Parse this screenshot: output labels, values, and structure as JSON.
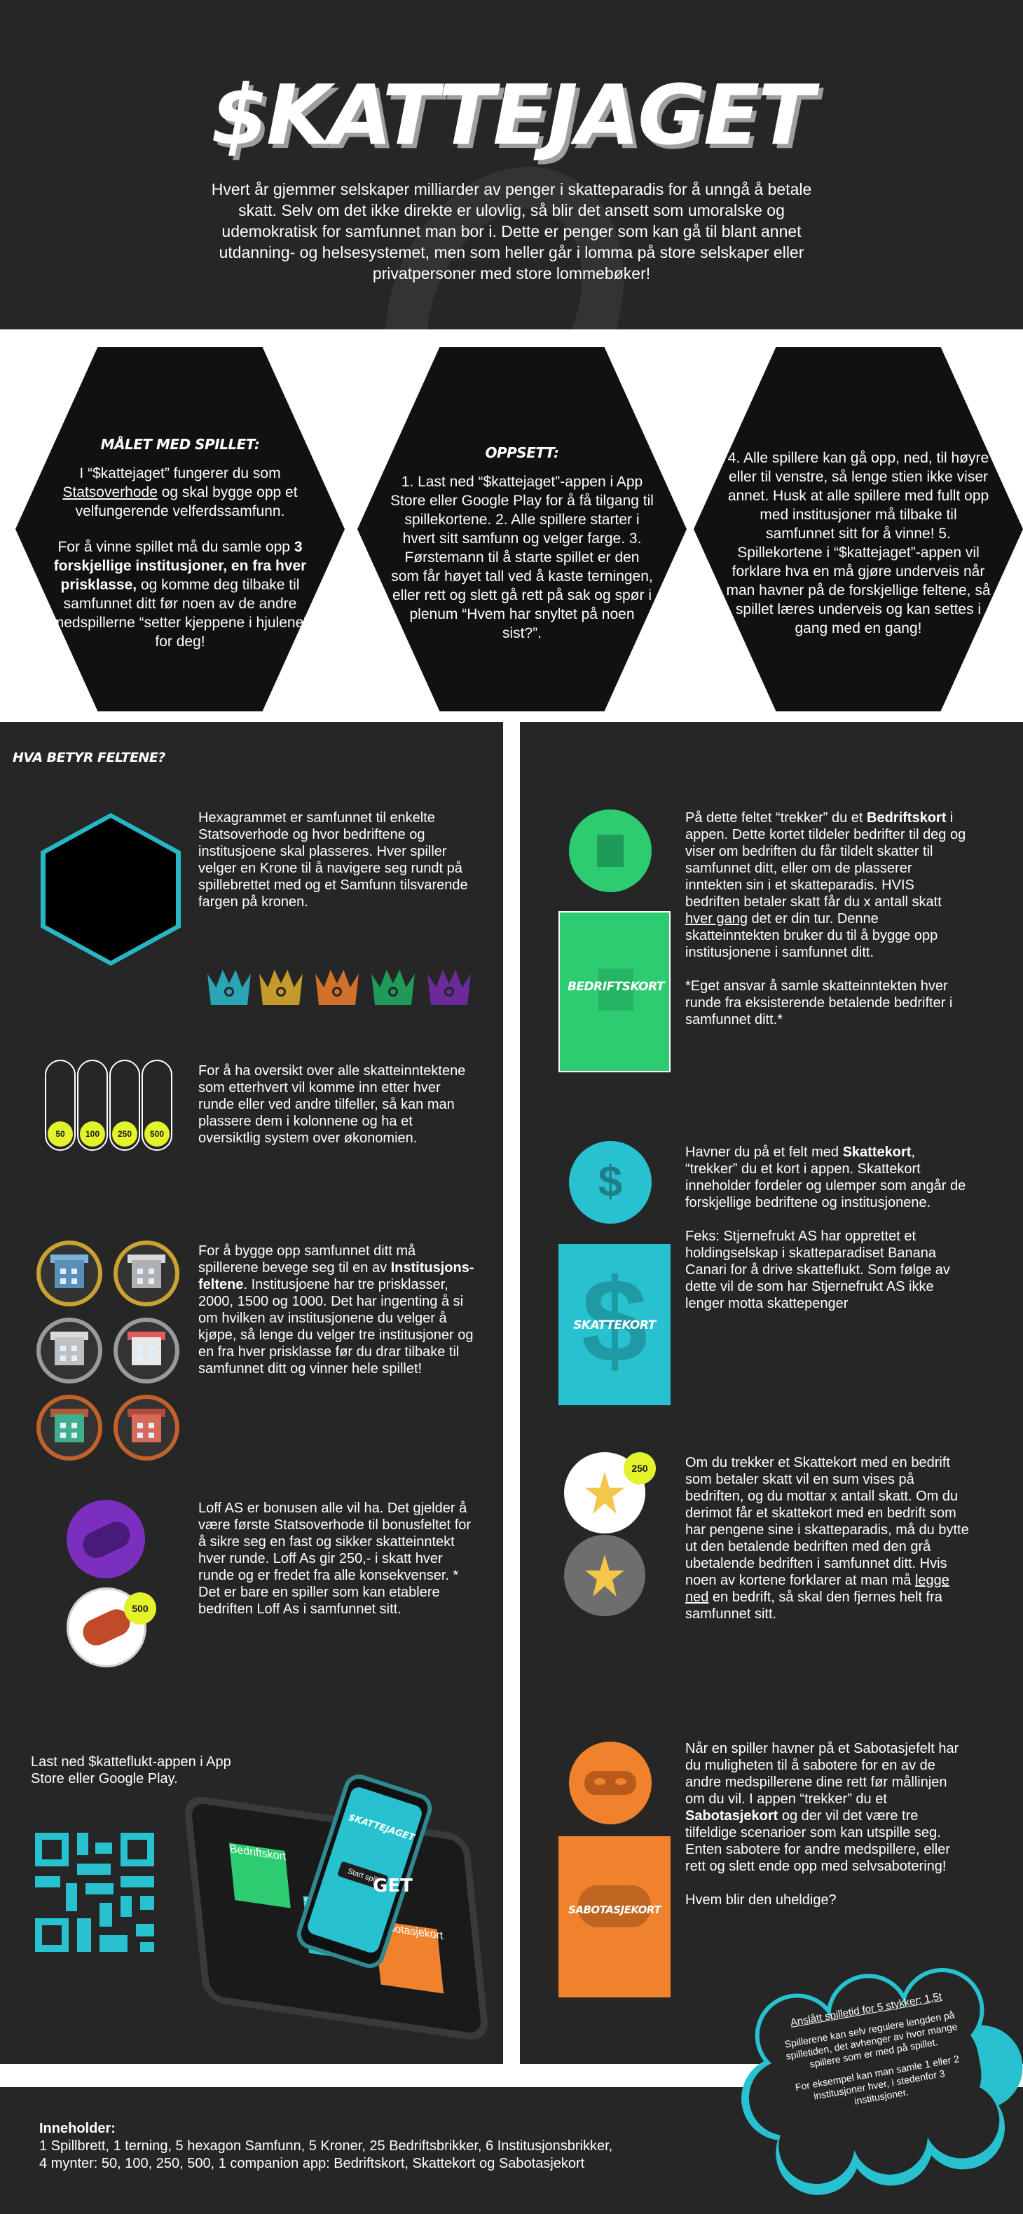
{
  "header": {
    "title": "$KATTEJAGET",
    "intro": "Hvert år gjemmer selskaper milliarder av penger i skatteparadis for å unngå å betale skatt. Selv om det ikke direkte er ulovlig, så blir det ansett som umoralske og udemokratisk for samfunnet man bor i. Dette er penger som kan gå til blant annet utdanning- og helsesystemet, men som heller går i lomma på store selskaper eller privatpersoner med store lommebøker!"
  },
  "goal": {
    "heading": "MÅLET MED SPILLET:",
    "p1_a": "I “$kattejaget” fungerer du som ",
    "p1_u": "Statsoverhode",
    "p1_b": " og skal bygge opp et velfungerende velferdssamfunn.",
    "p2_a": "For å vinne spillet må du samle opp ",
    "p2_bold": "3 forskjellige institusjoner, en fra hver prisklasse,",
    "p2_b": " og komme deg tilbake til samfunnet ditt før noen av de andre medspillerne “setter kjeppene i hjulene” for deg!"
  },
  "setup": {
    "heading": "OPPSETT:",
    "text": "1. Last ned “$kattejaget”-appen i App Store eller Google Play for å få tilgang til spillekortene. 2. Alle spillere starter i hvert sitt samfunn og velger farge. 3. Førstemann til å starte spillet er den som får høyet tall ved å kaste terningen, eller rett og slett gå rett på sak og spør i plenum “Hvem har snyltet på noen sist?”."
  },
  "rules": {
    "text": "4. Alle spillere kan gå opp, ned, til høyre eller til venstre, så lenge stien ikke viser annet. Husk at alle spillere med fullt opp med institusjoner må tilbake til samfunnet sitt for å vinne! 5. Spillekortene i “$kattejaget”-appen vil forklare hva en må gjøre underveis når man havner på de forskjellige feltene, så spillet læres underveis og kan settes i gang med en gang!"
  },
  "fields": {
    "heading": "HVA BETYR FELTENE?",
    "hexagram_text": "Hexagrammet er samfunnet til enkelte Statsoverhode og hvor bedriftene og institusjoene skal plasseres. Hver spiller velger en Krone til å navigere seg rundt på spillebrettet med og et Samfunn tilsvarende fargen på kronen.",
    "coins_text": "For å ha oversikt over alle skatteinntektene som etterhvert vil komme inn etter hver runde eller ved andre tilfeller, så kan man plassere dem i kolonnene og ha et oversiktlig system over økonomien.",
    "coin_values": [
      "50",
      "100",
      "250",
      "500"
    ],
    "inst_a": "For å bygge opp samfunnet ditt må spillerene bevege seg til en av ",
    "inst_bold": "Institusjons-feltene",
    "inst_b": ". Institusjoene har tre prisklasser, 2000, 1500 og 1000. Det har ingenting å si om hvilken av institusjonene du velger å kjøpe, så lenge du velger tre institusjoner og en fra hver prisklasse før du drar tilbake til samfunnet ditt og vinner hele spillet!",
    "loff_text": "Loff AS er bonusen alle vil ha. Det gjelder å være første Statsoverhode  til bonusfeltet for å sikre seg en fast og sikker skatteinntekt hver runde. Loff As gir 250,- i skatt hver runde og er fredet fra alle konsekvenser. * Det er bare en spiller som kan etablere bedriften Loff As i samfunnet sitt.",
    "loff_badge": "500",
    "download_text": "Last ned $katteflukt-appen i App Store eller Google Play."
  },
  "device": {
    "phone_title": "$KATTEJAGET",
    "phone_button": "Start spill",
    "get_label": "GET",
    "card1": "Bedriftskort",
    "card2": "Skattekort",
    "card3": "Sabotasjekort"
  },
  "right": {
    "bedrift_a": "På dette feltet “trekker” du et ",
    "bedrift_bold": "Bedriftskort",
    "bedrift_b": " i appen. Dette kortet tildeler bedrifter til deg og viser om bedriften du får tildelt skatter til samfunnet ditt, eller om de plasserer inntekten sin i et skatteparadis. HVIS bedriften betaler skatt får du x antall skatt ",
    "bedrift_u": "hver gang",
    "bedrift_c": " det er din tur. Denne skatteinntekten bruker du til å bygge opp institusjonene i samfunnet ditt.",
    "bedrift_note": "*Eget ansvar å samle skatteinntekten hver runde fra eksisterende betalende bedrifter i samfunnet ditt.*",
    "bedrift_card": "BEDRIFTSKORT",
    "skatt_a": "Havner du på et felt med ",
    "skatt_bold": "Skattekort",
    "skatt_b": ", “trekker” du et kort i appen. Skattekort inneholder fordeler og ulemper som angår de forskjellige bedriftene og institusjonene.",
    "skatt_ex": "Feks: Stjernefrukt AS har opprettet et holdingselskap i skatteparadiset Banana Canari for å drive skatteflukt. Som følge av dette vil de som har Stjernefrukt AS ikke lenger motta skattepenger",
    "skatt_card": "SKATTEKORT",
    "fruit_badge": "250",
    "fruit_a": "Om du trekker et Skattekort med en bedrift som betaler skatt vil en sum vises på bedriften, og du mottar x antall skatt. Om du derimot får et skattekort med en bedrift som har pengene sine i skatteparadis, må du bytte ut den betalende bedriften med den grå ubetalende bedriften i samfunnet ditt. Hvis noen av kortene forklarer at man må ",
    "fruit_u": "legge ned",
    "fruit_b": " en bedrift, så skal den fjernes helt fra samfunnet sitt.",
    "sab_a": "Når en spiller havner på et Sabotasjefelt har du muligheten til å sabotere for en av de andre medspillerene dine rett før mållinjen om du vil. I appen “trekker” du et ",
    "sab_bold": "Sabotasjekort",
    "sab_b": " og der vil det være tre tilfeldige scenarioer som kan utspille seg. Enten sabotere for andre medspillere, eller rett og slett ende opp med selvsabotering!",
    "sab_q": "Hvem blir den uheldige?",
    "sab_card": "SABOTASJEKORT"
  },
  "playtime": {
    "heading": "Anslått spilletid for 5 stykker: 1,5t",
    "p1": "Spillerene kan selv regulere lengden på spilletiden, det avhenger av hvor mange spillere som er med på spillet.",
    "p2": "For eksempel kan man samle 1 eller 2 institusjoner hver, i stedenfor 3 institusjoner."
  },
  "footer": {
    "heading": "Inneholder:",
    "line1": "1 Spillbrett, 1 terning, 5 hexagon Samfunn, 5 Kroner, 25 Bedriftsbrikker, 6 Institusjonsbrikker,",
    "line2": "4 mynter: 50, 100, 250, 500, 1 companion app: Bedriftskort, Skattekort og Sabotasjekort"
  },
  "colors": {
    "background": "#262626",
    "cyan": "#28c1cf",
    "green": "#2ecc71",
    "orange": "#f0822e",
    "purple": "#7b2fbf",
    "yellow": "#e4f22b",
    "crown_colors": [
      "#2aa5b5",
      "#c49a2c",
      "#d0702a",
      "#1f9a58",
      "#6a2a9a"
    ]
  },
  "icons": [
    "crown-icon",
    "building-icon",
    "dollar-icon",
    "bread-icon",
    "star-fruit-icon",
    "mask-icon",
    "qr-code-icon"
  ]
}
